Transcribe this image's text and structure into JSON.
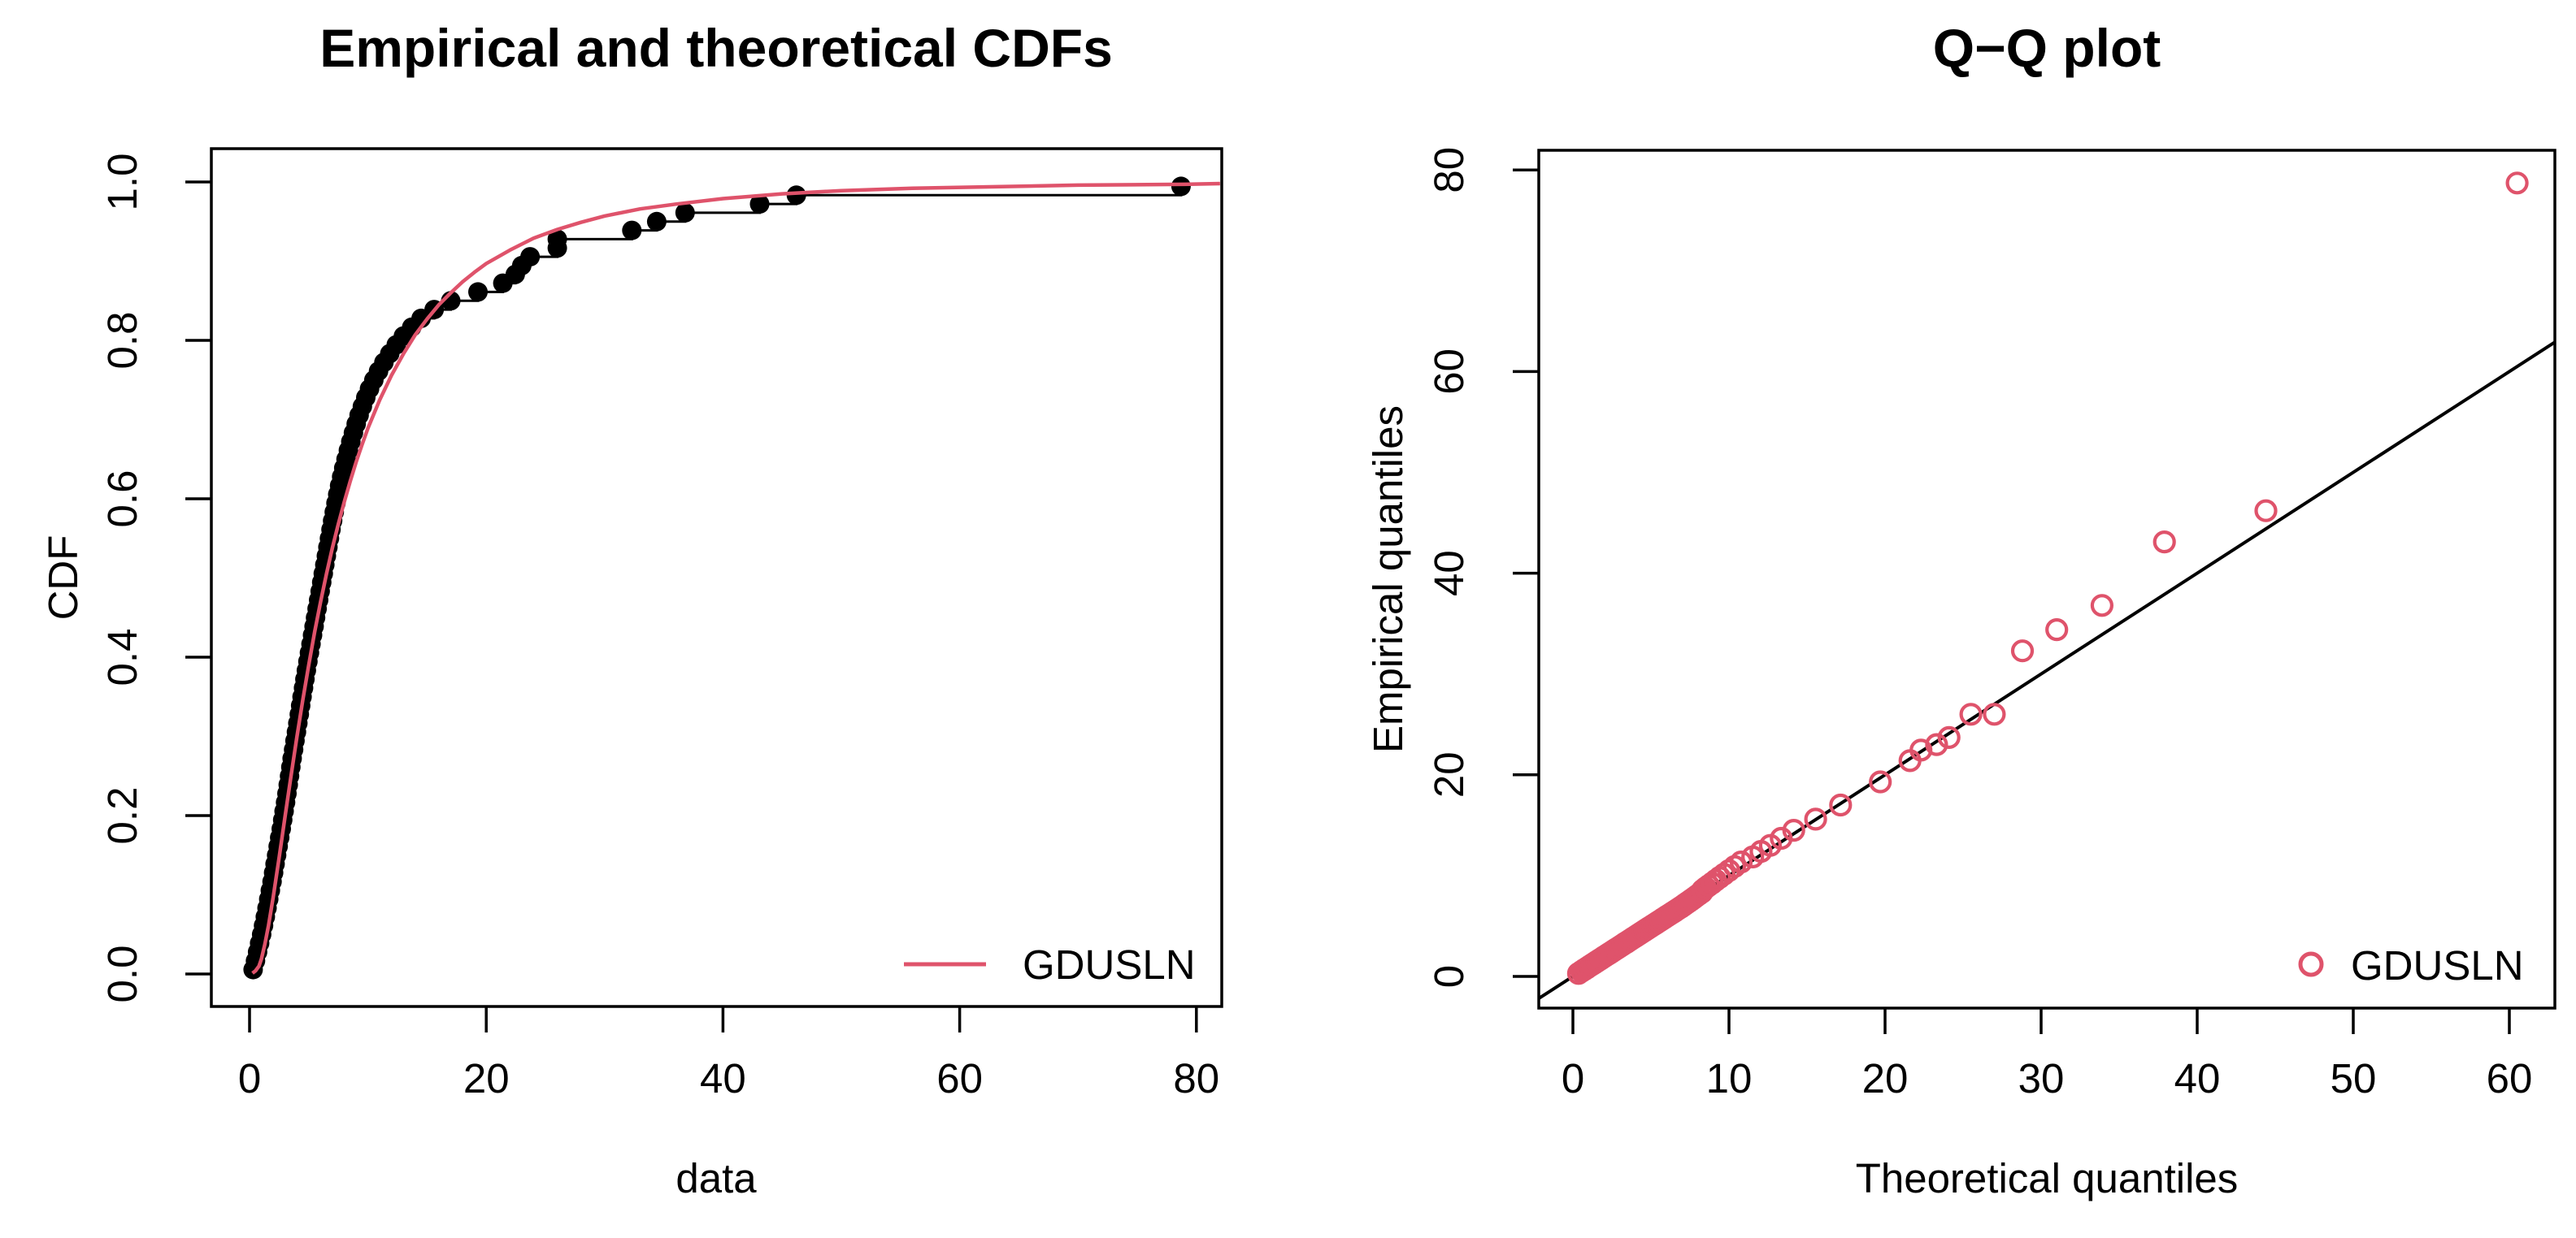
{
  "page": {
    "background": "#ffffff",
    "accent_color": "#DF536B",
    "foreground_color": "#000000"
  },
  "chart_data": [
    {
      "type": "line",
      "subtype": "empirical-cdf-with-fitted-cdf",
      "title": "Empirical and theoretical CDFs",
      "xlabel": "data",
      "ylabel": "CDF",
      "xlim": [
        0,
        80
      ],
      "ylim": [
        0.0,
        1.0
      ],
      "x_ticks": [
        0,
        20,
        40,
        60,
        80
      ],
      "y_ticks": [
        "0.0",
        "0.2",
        "0.4",
        "0.6",
        "0.8",
        "1.0"
      ],
      "grid": false,
      "legend": {
        "label": "GDUSLN",
        "position": "bottom-right",
        "swatch": "line",
        "color": "#DF536B"
      },
      "empirical_color": "#000000",
      "fitted_color": "#DF536B",
      "n": 90,
      "ecdf_probability_rule": "(i - 0.5) / n",
      "empirical_sorted_sample": [
        0.3,
        0.5,
        0.68,
        0.85,
        1.02,
        1.18,
        1.33,
        1.48,
        1.62,
        1.76,
        1.9,
        2.03,
        2.16,
        2.29,
        2.42,
        2.55,
        2.68,
        2.8,
        2.92,
        3.04,
        3.16,
        3.27,
        3.38,
        3.49,
        3.6,
        3.72,
        3.84,
        3.96,
        4.08,
        4.2,
        4.32,
        4.44,
        4.56,
        4.68,
        4.8,
        4.93,
        5.06,
        5.19,
        5.32,
        5.45,
        5.58,
        5.71,
        5.84,
        5.97,
        6.1,
        6.23,
        6.36,
        6.49,
        6.62,
        6.75,
        6.88,
        7.02,
        7.16,
        7.3,
        7.45,
        7.61,
        7.78,
        7.96,
        8.15,
        8.35,
        8.56,
        8.78,
        9.01,
        9.26,
        9.53,
        9.82,
        10.14,
        10.5,
        10.9,
        11.35,
        11.85,
        12.4,
        13.0,
        13.7,
        14.5,
        15.6,
        17.0,
        19.3,
        21.4,
        22.45,
        23.0,
        23.7,
        26.0,
        26.0,
        32.3,
        34.4,
        36.8,
        43.1,
        46.2,
        78.7
      ],
      "fitted_cdf_curve": [
        [
          0.25,
          0.001
        ],
        [
          0.5,
          0.004
        ],
        [
          0.8,
          0.01
        ],
        [
          1,
          0.019
        ],
        [
          1.3,
          0.038
        ],
        [
          1.6,
          0.061
        ],
        [
          2,
          0.097
        ],
        [
          2.5,
          0.147
        ],
        [
          3,
          0.199
        ],
        [
          3.5,
          0.25
        ],
        [
          4,
          0.299
        ],
        [
          4.5,
          0.346
        ],
        [
          5,
          0.39
        ],
        [
          5.5,
          0.432
        ],
        [
          6,
          0.47
        ],
        [
          6.5,
          0.505
        ],
        [
          7,
          0.538
        ],
        [
          7.5,
          0.568
        ],
        [
          8,
          0.596
        ],
        [
          8.5,
          0.622
        ],
        [
          9,
          0.646
        ],
        [
          9.5,
          0.668
        ],
        [
          10,
          0.689
        ],
        [
          11,
          0.725
        ],
        [
          12,
          0.756
        ],
        [
          13,
          0.783
        ],
        [
          14,
          0.807
        ],
        [
          15,
          0.827
        ],
        [
          16,
          0.845
        ],
        [
          17,
          0.86
        ],
        [
          18,
          0.874
        ],
        [
          19,
          0.886
        ],
        [
          20,
          0.897
        ],
        [
          22,
          0.914
        ],
        [
          24,
          0.929
        ],
        [
          26,
          0.94
        ],
        [
          28,
          0.949
        ],
        [
          30,
          0.957
        ],
        [
          33,
          0.966
        ],
        [
          36,
          0.972
        ],
        [
          40,
          0.979
        ],
        [
          45,
          0.985
        ],
        [
          50,
          0.989
        ],
        [
          56,
          0.992
        ],
        [
          63,
          0.994
        ],
        [
          70,
          0.996
        ],
        [
          79,
          0.997
        ],
        [
          82,
          0.998
        ]
      ]
    },
    {
      "type": "scatter",
      "subtype": "qq-plot",
      "title": "Q−Q plot",
      "xlabel": "Theoretical quantiles",
      "ylabel": "Empirical quantiles",
      "xlim": [
        0,
        60
      ],
      "ylim": [
        0,
        80
      ],
      "x_ticks": [
        0,
        10,
        20,
        30,
        40,
        50,
        60
      ],
      "y_ticks": [
        0,
        20,
        40,
        60,
        80
      ],
      "grid": false,
      "reference_line": "y = x",
      "line_color": "#000000",
      "point_color": "#DF536B",
      "point_style": "open-circle",
      "legend": {
        "label": "GDUSLN",
        "position": "bottom-right",
        "swatch": "open-circle",
        "color": "#DF536B"
      },
      "points_theoretical_vs_empirical": [
        [
          0.36,
          0.3
        ],
        [
          0.55,
          0.5
        ],
        [
          0.73,
          0.68
        ],
        [
          0.9,
          0.85
        ],
        [
          1.07,
          1.02
        ],
        [
          1.23,
          1.18
        ],
        [
          1.38,
          1.33
        ],
        [
          1.53,
          1.48
        ],
        [
          1.67,
          1.62
        ],
        [
          1.81,
          1.76
        ],
        [
          1.95,
          1.9
        ],
        [
          2.08,
          2.03
        ],
        [
          2.21,
          2.16
        ],
        [
          2.34,
          2.29
        ],
        [
          2.47,
          2.42
        ],
        [
          2.6,
          2.55
        ],
        [
          2.73,
          2.68
        ],
        [
          2.85,
          2.8
        ],
        [
          2.97,
          2.92
        ],
        [
          3.09,
          3.04
        ],
        [
          3.21,
          3.16
        ],
        [
          3.32,
          3.27
        ],
        [
          3.43,
          3.38
        ],
        [
          3.54,
          3.49
        ],
        [
          3.65,
          3.6
        ],
        [
          3.77,
          3.72
        ],
        [
          3.89,
          3.84
        ],
        [
          4.01,
          3.96
        ],
        [
          4.13,
          4.08
        ],
        [
          4.25,
          4.2
        ],
        [
          4.37,
          4.32
        ],
        [
          4.49,
          4.44
        ],
        [
          4.61,
          4.56
        ],
        [
          4.73,
          4.68
        ],
        [
          4.85,
          4.8
        ],
        [
          4.98,
          4.93
        ],
        [
          5.11,
          5.06
        ],
        [
          5.24,
          5.19
        ],
        [
          5.37,
          5.32
        ],
        [
          5.5,
          5.45
        ],
        [
          5.63,
          5.58
        ],
        [
          5.76,
          5.71
        ],
        [
          5.89,
          5.84
        ],
        [
          6.02,
          5.97
        ],
        [
          6.15,
          6.1
        ],
        [
          6.28,
          6.23
        ],
        [
          6.41,
          6.36
        ],
        [
          6.54,
          6.49
        ],
        [
          6.67,
          6.62
        ],
        [
          6.8,
          6.75
        ],
        [
          6.93,
          6.88
        ],
        [
          7.06,
          7.02
        ],
        [
          7.19,
          7.16
        ],
        [
          7.32,
          7.3
        ],
        [
          7.46,
          7.45
        ],
        [
          7.6,
          7.61
        ],
        [
          7.75,
          7.78
        ],
        [
          7.91,
          7.96
        ],
        [
          8.08,
          8.15
        ],
        [
          8.26,
          8.35
        ],
        [
          8.32,
          8.56
        ],
        [
          8.5,
          8.78
        ],
        [
          8.7,
          9.01
        ],
        [
          8.92,
          9.26
        ],
        [
          9.15,
          9.53
        ],
        [
          9.4,
          9.82
        ],
        [
          9.68,
          10.14
        ],
        [
          10.0,
          10.5
        ],
        [
          10.36,
          10.9
        ],
        [
          10.78,
          11.35
        ],
        [
          11.52,
          11.85
        ],
        [
          12.05,
          12.4
        ],
        [
          12.65,
          13.0
        ],
        [
          13.35,
          13.7
        ],
        [
          14.15,
          14.5
        ],
        [
          15.55,
          15.6
        ],
        [
          17.15,
          17.0
        ],
        [
          19.7,
          19.3
        ],
        [
          21.6,
          21.4
        ],
        [
          22.3,
          22.45
        ],
        [
          23.3,
          23.0
        ],
        [
          24.1,
          23.7
        ],
        [
          25.5,
          26.0
        ],
        [
          27.0,
          26.0
        ],
        [
          28.8,
          32.3
        ],
        [
          31.0,
          34.4
        ],
        [
          33.9,
          36.8
        ],
        [
          37.9,
          43.1
        ],
        [
          44.4,
          46.2
        ],
        [
          60.5,
          78.7
        ]
      ]
    }
  ]
}
